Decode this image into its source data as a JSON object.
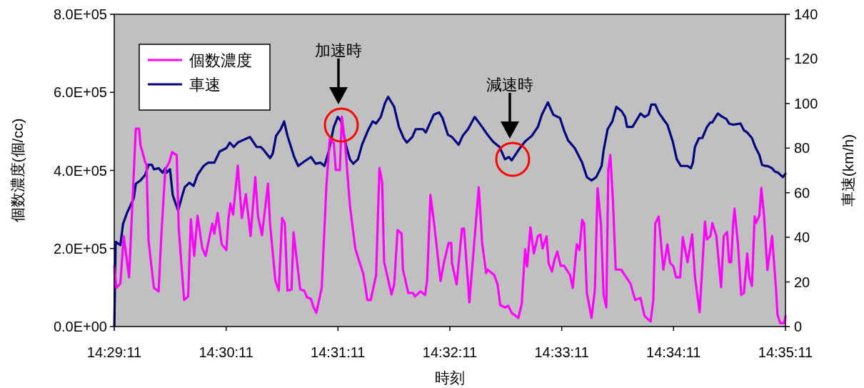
{
  "chart_data": {
    "type": "line",
    "xlabel": "時刻",
    "ylabel": "個数濃度(個/cc)",
    "y2label": "車速(km/h)",
    "xlim": [
      14.48639,
      14.58639
    ],
    "xticks": [
      {
        "value": 14.48639,
        "label": "14:29:11"
      },
      {
        "value": 14.50306,
        "label": "14:30:11"
      },
      {
        "value": 14.51972,
        "label": "14:31:11"
      },
      {
        "value": 14.53639,
        "label": "14:32:11"
      },
      {
        "value": 14.55306,
        "label": "14:33:11"
      },
      {
        "value": 14.56972,
        "label": "14:34:11"
      },
      {
        "value": 14.58639,
        "label": "14:35:11"
      }
    ],
    "ylim": [
      0,
      800000
    ],
    "yticks": [
      {
        "value": 0,
        "label": "0.0E+00"
      },
      {
        "value": 200000,
        "label": "2.0E+05"
      },
      {
        "value": 400000,
        "label": "4.0E+05"
      },
      {
        "value": 600000,
        "label": "6.0E+05"
      },
      {
        "value": 800000,
        "label": "8.0E+05"
      }
    ],
    "y2lim": [
      0,
      140
    ],
    "y2ticks": [
      0,
      20,
      40,
      60,
      80,
      100,
      120,
      140
    ],
    "legend": "top left",
    "grid": false,
    "marker": "none",
    "line_style": "solid",
    "annotations": [
      "加速時",
      "減速時"
    ],
    "series": [
      {
        "name": "個数濃度",
        "color": "#ff00ff",
        "x": [
          14.4864,
          14.4867,
          14.4873,
          14.4878,
          14.4886,
          14.4896,
          14.4901,
          14.4903,
          14.491,
          14.4912,
          14.4915,
          14.4923,
          14.493,
          14.4934,
          14.494,
          14.4946,
          14.495,
          14.4957,
          14.496,
          14.4968,
          14.4974,
          14.4978,
          14.4983,
          14.4988,
          14.4995,
          14.5,
          14.501,
          14.5013,
          14.5018,
          14.5024,
          14.5031,
          14.5034,
          14.5037,
          14.5041,
          14.5048,
          14.5054,
          14.506,
          14.5067,
          14.5074,
          14.5078,
          14.5084,
          14.5093,
          14.5096,
          14.5104,
          14.5109,
          14.5114,
          14.5118,
          14.5122,
          14.5128,
          14.5131,
          14.5141,
          14.5147,
          14.5151,
          14.5157,
          14.516,
          14.5165,
          14.5173,
          14.518,
          14.5185,
          14.5191,
          14.5194,
          14.52,
          14.5203,
          14.5208,
          14.5215,
          14.5223,
          14.5228,
          14.5235,
          14.5241,
          14.5246,
          14.5254,
          14.5259,
          14.5263,
          14.5266,
          14.5277,
          14.5281,
          14.5286,
          14.5292,
          14.5294,
          14.5302,
          14.5309,
          14.5312,
          14.532,
          14.5327,
          14.533,
          14.5335,
          14.5341,
          14.535,
          14.5355,
          14.5362,
          14.5366,
          14.5367,
          14.5374,
          14.5382,
          14.5385,
          14.5393,
          14.5407,
          14.5412,
          14.5418,
          14.542,
          14.543,
          14.5435,
          14.5439,
          14.5446,
          14.5451,
          14.5456,
          14.5466,
          14.5471,
          14.5476,
          14.5479,
          14.5484,
          14.5489,
          14.5495,
          14.5499,
          14.5502,
          14.5508,
          14.5511,
          14.5516,
          14.552,
          14.5524,
          14.5529,
          14.5534,
          14.5543,
          14.5547,
          14.5553,
          14.5557,
          14.5561,
          14.5564,
          14.5568,
          14.5575,
          14.558,
          14.5584,
          14.5589,
          14.5593,
          14.5597,
          14.56,
          14.5603,
          14.5607,
          14.5611,
          14.5619,
          14.5628,
          14.5633,
          14.564,
          14.5648,
          14.5654,
          14.5663,
          14.5667,
          14.567,
          14.5675,
          14.5682,
          14.5688,
          14.5692,
          14.5697,
          14.5701,
          14.5707,
          14.5711,
          14.5718,
          14.5725,
          14.5729,
          14.5736,
          14.5744,
          14.5747,
          14.5752,
          14.5755,
          14.5761,
          14.5768,
          14.5772,
          14.5777,
          14.578,
          14.5783,
          14.5786,
          14.5788,
          14.5793,
          14.5798,
          14.5802,
          14.5807,
          14.581,
          14.5814,
          14.5818,
          14.582,
          14.5825,
          14.5828,
          14.5832,
          14.5837,
          14.5844,
          14.585,
          14.5852,
          14.5856,
          14.5862,
          14.58639
        ],
        "values": [
          154000,
          99000,
          110000,
          232000,
          126000,
          507000,
          507000,
          465000,
          421000,
          416000,
          220000,
          99000,
          90000,
          232000,
          403000,
          421000,
          447000,
          439000,
          251000,
          68000,
          77000,
          275000,
          181000,
          284000,
          201000,
          181000,
          264000,
          238000,
          291000,
          211000,
          196000,
          275000,
          315000,
          287000,
          412000,
          278000,
          339000,
          232000,
          383000,
          284000,
          234000,
          366000,
          264000,
          117000,
          92000,
          278000,
          265000,
          92000,
          95000,
          242000,
          95000,
          92000,
          75000,
          71000,
          53000,
          35000,
          99000,
          361000,
          480000,
          470000,
          401000,
          401000,
          538000,
          465000,
          311000,
          200000,
          172000,
          135000,
          68000,
          68000,
          132000,
          406000,
          370000,
          165000,
          82000,
          108000,
          247000,
          238000,
          146000,
          86000,
          86000,
          77000,
          90000,
          81000,
          117000,
          337000,
          256000,
          117000,
          163000,
          214000,
          214000,
          163000,
          108000,
          251000,
          251000,
          62000,
          357000,
          214000,
          137000,
          146000,
          132000,
          108000,
          55000,
          49000,
          53000,
          35000,
          22000,
          59000,
          198000,
          154000,
          254000,
          187000,
          232000,
          236000,
          200000,
          231000,
          163000,
          141000,
          172000,
          192000,
          156000,
          156000,
          132000,
          99000,
          211000,
          196000,
          273000,
          264000,
          86000,
          22000,
          95000,
          355000,
          264000,
          81000,
          49000,
          403000,
          439000,
          319000,
          146000,
          146000,
          123000,
          110000,
          68000,
          73000,
          27000,
          13000,
          68000,
          264000,
          282000,
          146000,
          211000,
          163000,
          154000,
          126000,
          126000,
          229000,
          165000,
          236000,
          128000,
          37000,
          269000,
          223000,
          232000,
          265000,
          232000,
          101000,
          232000,
          242000,
          165000,
          165000,
          264000,
          302000,
          214000,
          81000,
          86000,
          187000,
          128000,
          104000,
          282000,
          265000,
          284000,
          355000,
          284000,
          145000,
          232000,
          92000,
          31000,
          9000,
          9000,
          26000
        ]
      },
      {
        "name": "車速",
        "color": "#000080",
        "axis": "y2",
        "x": [
          14.4864,
          14.4866,
          14.4873,
          14.4877,
          14.4883,
          14.4893,
          14.4896,
          14.4903,
          14.491,
          14.4915,
          14.492,
          14.4923,
          14.493,
          14.4936,
          14.494,
          14.4942,
          14.4947,
          14.4951,
          14.4959,
          14.4965,
          14.4969,
          14.4976,
          14.4982,
          14.4988,
          14.4997,
          14.5004,
          14.5013,
          14.5021,
          14.5031,
          14.5036,
          14.5042,
          14.5048,
          14.5055,
          14.5066,
          14.5076,
          14.5082,
          14.5087,
          14.5096,
          14.51,
          14.5105,
          14.5112,
          14.5117,
          14.5122,
          14.5132,
          14.5138,
          14.5147,
          14.5157,
          14.5164,
          14.5171,
          14.5177,
          14.5183,
          14.5191,
          14.5197,
          14.5202,
          14.5209,
          14.5215,
          14.522,
          14.5227,
          14.5233,
          14.5242,
          14.5249,
          14.5254,
          14.5261,
          14.5267,
          14.5272,
          14.5281,
          14.5288,
          14.5295,
          14.53,
          14.5308,
          14.5313,
          14.5324,
          14.5328,
          14.5334,
          14.534,
          14.5348,
          14.5353,
          14.5361,
          14.5367,
          14.5377,
          14.5383,
          14.5391,
          14.5401,
          14.5412,
          14.542,
          14.5428,
          14.5438,
          14.5446,
          14.5452,
          14.5456,
          14.5467,
          14.5476,
          14.5486,
          14.5495,
          14.5501,
          14.551,
          14.5518,
          14.5528,
          14.5534,
          14.554,
          14.555,
          14.5561,
          14.5568,
          14.5575,
          14.5582,
          14.559,
          14.5593,
          14.5599,
          14.5606,
          14.5612,
          14.562,
          14.5625,
          14.5628,
          14.5636,
          14.5641,
          14.5648,
          14.5654,
          14.566,
          14.5664,
          14.567,
          14.5675,
          14.5683,
          14.5688,
          14.5696,
          14.5702,
          14.5708,
          14.5718,
          14.5723,
          14.5726,
          14.5729,
          14.5735,
          14.574,
          14.5747,
          14.5752,
          14.5755,
          14.5763,
          14.577,
          14.5776,
          14.578,
          14.5786,
          14.5797,
          14.5802,
          14.5807,
          14.5814,
          14.5819,
          14.5825,
          14.5829,
          14.5834,
          14.5837,
          14.5844,
          14.5848,
          14.5853,
          14.586,
          14.58639
        ],
        "values": [
          0,
          38,
          36.5,
          46,
          51,
          57.5,
          64,
          65.5,
          68,
          72.5,
          72.5,
          70.5,
          71,
          69,
          71,
          69,
          70.5,
          59,
          52,
          58.5,
          62.5,
          64.5,
          63,
          68,
          72,
          73.5,
          73.5,
          78.5,
          80,
          82.5,
          80.5,
          82.5,
          83.5,
          85,
          80.5,
          80.5,
          79,
          75.5,
          77.5,
          85.5,
          88.5,
          92,
          85.5,
          76,
          72,
          74,
          76,
          73,
          73.5,
          72,
          78,
          89.5,
          94,
          92,
          81.5,
          75,
          73,
          75,
          81.5,
          88,
          92,
          91,
          94,
          100,
          103,
          98.5,
          89.5,
          84.5,
          82.5,
          85,
          88.5,
          88.5,
          87,
          91,
          95,
          96,
          93.5,
          86,
          85,
          81.5,
          85.5,
          88.5,
          94,
          89.5,
          86,
          83,
          80.5,
          75,
          76,
          74.5,
          79.5,
          83,
          85.5,
          89.5,
          95,
          100.5,
          95,
          93.5,
          88,
          83.5,
          80,
          73.5,
          67,
          65.5,
          67,
          72,
          79,
          88.5,
          92,
          98.5,
          96.5,
          94,
          89.5,
          89.5,
          92,
          95.5,
          94,
          95,
          99.5,
          99.5,
          96,
          92.5,
          90.5,
          83,
          75,
          72,
          72,
          71,
          73.5,
          80.5,
          84.5,
          84.5,
          89.5,
          91.5,
          91.5,
          95.5,
          94,
          93,
          91,
          90.5,
          91,
          88,
          87,
          84.5,
          80.5,
          77,
          72.5,
          72,
          72,
          71,
          69.5,
          69,
          67,
          68.5
        ]
      }
    ]
  }
}
